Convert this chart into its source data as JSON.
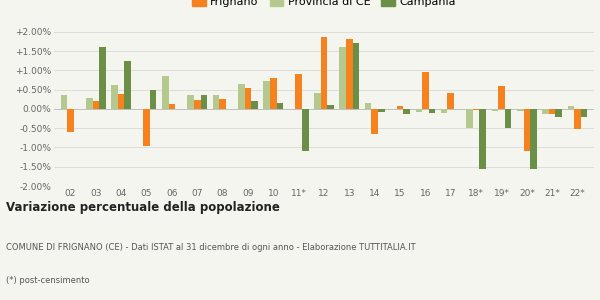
{
  "categories": [
    "02",
    "03",
    "04",
    "05",
    "06",
    "07",
    "08",
    "09",
    "10",
    "11*",
    "12",
    "13",
    "14",
    "15",
    "16",
    "17",
    "18*",
    "19*",
    "20*",
    "21*",
    "22*"
  ],
  "frignano": [
    -0.6,
    0.2,
    0.4,
    -0.95,
    0.12,
    0.22,
    0.25,
    0.55,
    0.8,
    0.92,
    1.88,
    1.82,
    -0.65,
    0.08,
    0.95,
    0.42,
    -0.02,
    0.6,
    -1.1,
    -0.12,
    -0.52
  ],
  "provincia_ce": [
    0.35,
    0.28,
    0.62,
    0.0,
    0.85,
    0.37,
    0.35,
    0.65,
    0.72,
    0.0,
    0.42,
    1.6,
    0.15,
    0.0,
    -0.08,
    -0.1,
    -0.5,
    -0.05,
    -0.05,
    -0.13,
    0.07
  ],
  "campania": [
    0.0,
    1.6,
    1.25,
    0.5,
    0.0,
    0.35,
    0.0,
    0.2,
    0.15,
    -1.1,
    0.1,
    1.7,
    -0.07,
    -0.12,
    -0.1,
    0.0,
    -1.55,
    -0.5,
    -1.55,
    -0.2,
    -0.2
  ],
  "color_frignano": "#f5821f",
  "color_provincia": "#b5c98e",
  "color_campania": "#6b8f47",
  "bg_color": "#f5f5f0",
  "grid_color": "#dddddd",
  "ylim": [
    -2.0,
    2.0
  ],
  "yticks": [
    -2.0,
    -1.5,
    -1.0,
    -0.5,
    0.0,
    0.5,
    1.0,
    1.5,
    2.0
  ],
  "title": "Variazione percentuale della popolazione",
  "subtitle": "COMUNE DI FRIGNANO (CE) - Dati ISTAT al 31 dicembre di ogni anno - Elaborazione TUTTITALIA.IT",
  "footnote": "(*) post-censimento",
  "legend_frignano": "Frignano",
  "legend_provincia": "Provincia di CE",
  "legend_campania": "Campania"
}
